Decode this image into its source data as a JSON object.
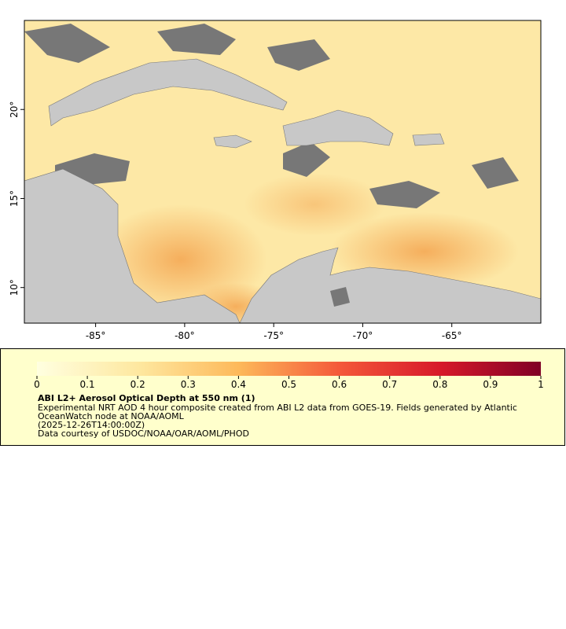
{
  "map": {
    "xlim": [
      -89,
      -60
    ],
    "ylim": [
      8,
      25
    ],
    "xticks": [
      {
        "value": -85,
        "label": "-85°"
      },
      {
        "value": -80,
        "label": "-80°"
      },
      {
        "value": -75,
        "label": "-75°"
      },
      {
        "value": -70,
        "label": "-70°"
      },
      {
        "value": -65,
        "label": "-65°"
      }
    ],
    "yticks": [
      {
        "value": 10,
        "label": "10°"
      },
      {
        "value": 15,
        "label": "15°"
      },
      {
        "value": 20,
        "label": "20°"
      }
    ]
  },
  "colorbar": {
    "lim": [
      0,
      1
    ],
    "ticks": [
      0,
      0.1,
      0.2,
      0.3,
      0.4,
      0.5,
      0.6,
      0.7,
      0.8,
      0.9,
      1
    ]
  },
  "legend": {
    "title": "ABI L2+ Aerosol Optical Depth at 550 nm (1)",
    "lines": [
      "Experimental NRT AOD 4 hour composite created from ABI L2 data from GOES-19. Fields generated by Atlantic",
      "OceanWatch node at NOAA/AOML",
      "(2025-12-26T14:00:00Z)",
      "Data courtesy of USDOC/NOAA/OAR/AOML/PHOD"
    ]
  }
}
